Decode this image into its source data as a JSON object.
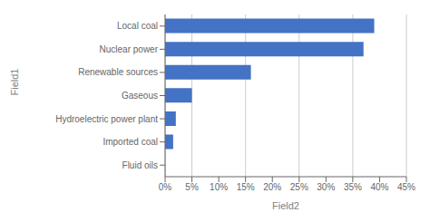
{
  "chart_data": {
    "type": "bar",
    "orientation": "horizontal",
    "categories": [
      "Local coal",
      "Nuclear power",
      "Renewable sources",
      "Gaseous",
      "Hydroelectric power plant",
      "Imported coal",
      "Fluid oils"
    ],
    "values": [
      0.39,
      0.37,
      0.16,
      0.05,
      0.02,
      0.015,
      0.0
    ],
    "color": "#4472C4",
    "xlabel": "Field2",
    "ylabel": "Field1",
    "xlim": [
      0,
      0.45
    ],
    "xticks": [
      {
        "value": 0.0,
        "label": "0%"
      },
      {
        "value": 0.05,
        "label": "5%"
      },
      {
        "value": 0.1,
        "label": "10%"
      },
      {
        "value": 0.15,
        "label": "15%"
      },
      {
        "value": 0.2,
        "label": "20%"
      },
      {
        "value": 0.25,
        "label": "25%"
      },
      {
        "value": 0.3,
        "label": "30%"
      },
      {
        "value": 0.35,
        "label": "35%"
      },
      {
        "value": 0.4,
        "label": "40%"
      },
      {
        "value": 0.45,
        "label": "45%"
      }
    ],
    "grid": true
  }
}
